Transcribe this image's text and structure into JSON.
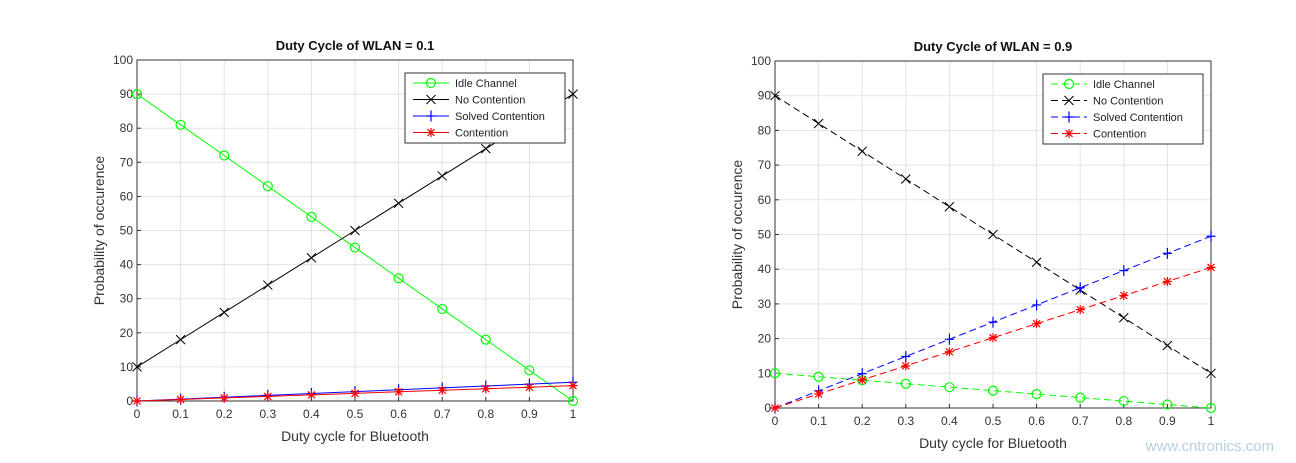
{
  "watermark": "www.cntronics.com",
  "chart_data": [
    {
      "type": "line",
      "title": "Duty Cycle of WLAN = 0.1",
      "xlabel": "Duty cycle for Bluetooth",
      "ylabel": "Probability of occurence",
      "xlim": [
        0,
        1
      ],
      "ylim": [
        0,
        100
      ],
      "xticks": [
        "0",
        "0.1",
        "0.2",
        "0.3",
        "0.4",
        "0.5",
        "0.6",
        "0.7",
        "0.8",
        "0.9",
        "1"
      ],
      "yticks": [
        "0",
        "10",
        "20",
        "30",
        "40",
        "50",
        "60",
        "70",
        "80",
        "90",
        "100"
      ],
      "grid": true,
      "legend": "top-right",
      "line_style": "solid",
      "x": [
        0,
        0.1,
        0.2,
        0.3,
        0.4,
        0.5,
        0.6,
        0.7,
        0.8,
        0.9,
        1
      ],
      "series": [
        {
          "name": "Idle Channel",
          "color": "#00ff00",
          "marker": "circle",
          "values": [
            90,
            81,
            72,
            63,
            54,
            45,
            36,
            27,
            18,
            9,
            0
          ]
        },
        {
          "name": "No Contention",
          "color": "#000000",
          "marker": "x",
          "values": [
            10,
            18,
            26,
            34,
            42,
            50,
            58,
            66,
            74,
            82,
            90
          ]
        },
        {
          "name": "Solved Contention",
          "color": "#0000ff",
          "marker": "plus",
          "values": [
            0,
            0.55,
            1.1,
            1.65,
            2.2,
            2.75,
            3.3,
            3.85,
            4.4,
            4.95,
            5.5
          ]
        },
        {
          "name": "Contention",
          "color": "#ff0000",
          "marker": "star",
          "values": [
            0,
            0.45,
            0.9,
            1.35,
            1.8,
            2.25,
            2.7,
            3.15,
            3.6,
            4.05,
            4.5
          ]
        }
      ]
    },
    {
      "type": "line",
      "title": "Duty Cycle of WLAN = 0.9",
      "xlabel": "Duty cycle for Bluetooth",
      "ylabel": "Probability of occurence",
      "xlim": [
        0,
        1
      ],
      "ylim": [
        0,
        100
      ],
      "xticks": [
        "0",
        "0.1",
        "0.2",
        "0.3",
        "0.4",
        "0.5",
        "0.6",
        "0.7",
        "0.8",
        "0.9",
        "1"
      ],
      "yticks": [
        "0",
        "10",
        "20",
        "30",
        "40",
        "50",
        "60",
        "70",
        "80",
        "90",
        "100"
      ],
      "grid": true,
      "legend": "top-right",
      "line_style": "dashed",
      "x": [
        0,
        0.1,
        0.2,
        0.3,
        0.4,
        0.5,
        0.6,
        0.7,
        0.8,
        0.9,
        1
      ],
      "series": [
        {
          "name": "Idle Channel",
          "color": "#00ff00",
          "marker": "circle",
          "values": [
            10,
            9,
            8,
            7,
            6,
            5,
            4,
            3,
            2,
            1,
            0
          ]
        },
        {
          "name": "No Contention",
          "color": "#000000",
          "marker": "x",
          "values": [
            90,
            82,
            74,
            66,
            58,
            50,
            42,
            34,
            26,
            18,
            10
          ]
        },
        {
          "name": "Solved Contention",
          "color": "#0000ff",
          "marker": "plus",
          "values": [
            0,
            4.95,
            9.9,
            14.85,
            19.8,
            24.75,
            29.7,
            34.65,
            39.6,
            44.55,
            49.5
          ]
        },
        {
          "name": "Contention",
          "color": "#ff0000",
          "marker": "star",
          "values": [
            0,
            4.05,
            8.1,
            12.15,
            16.2,
            20.25,
            24.3,
            28.35,
            32.4,
            36.45,
            40.5
          ]
        }
      ]
    }
  ]
}
